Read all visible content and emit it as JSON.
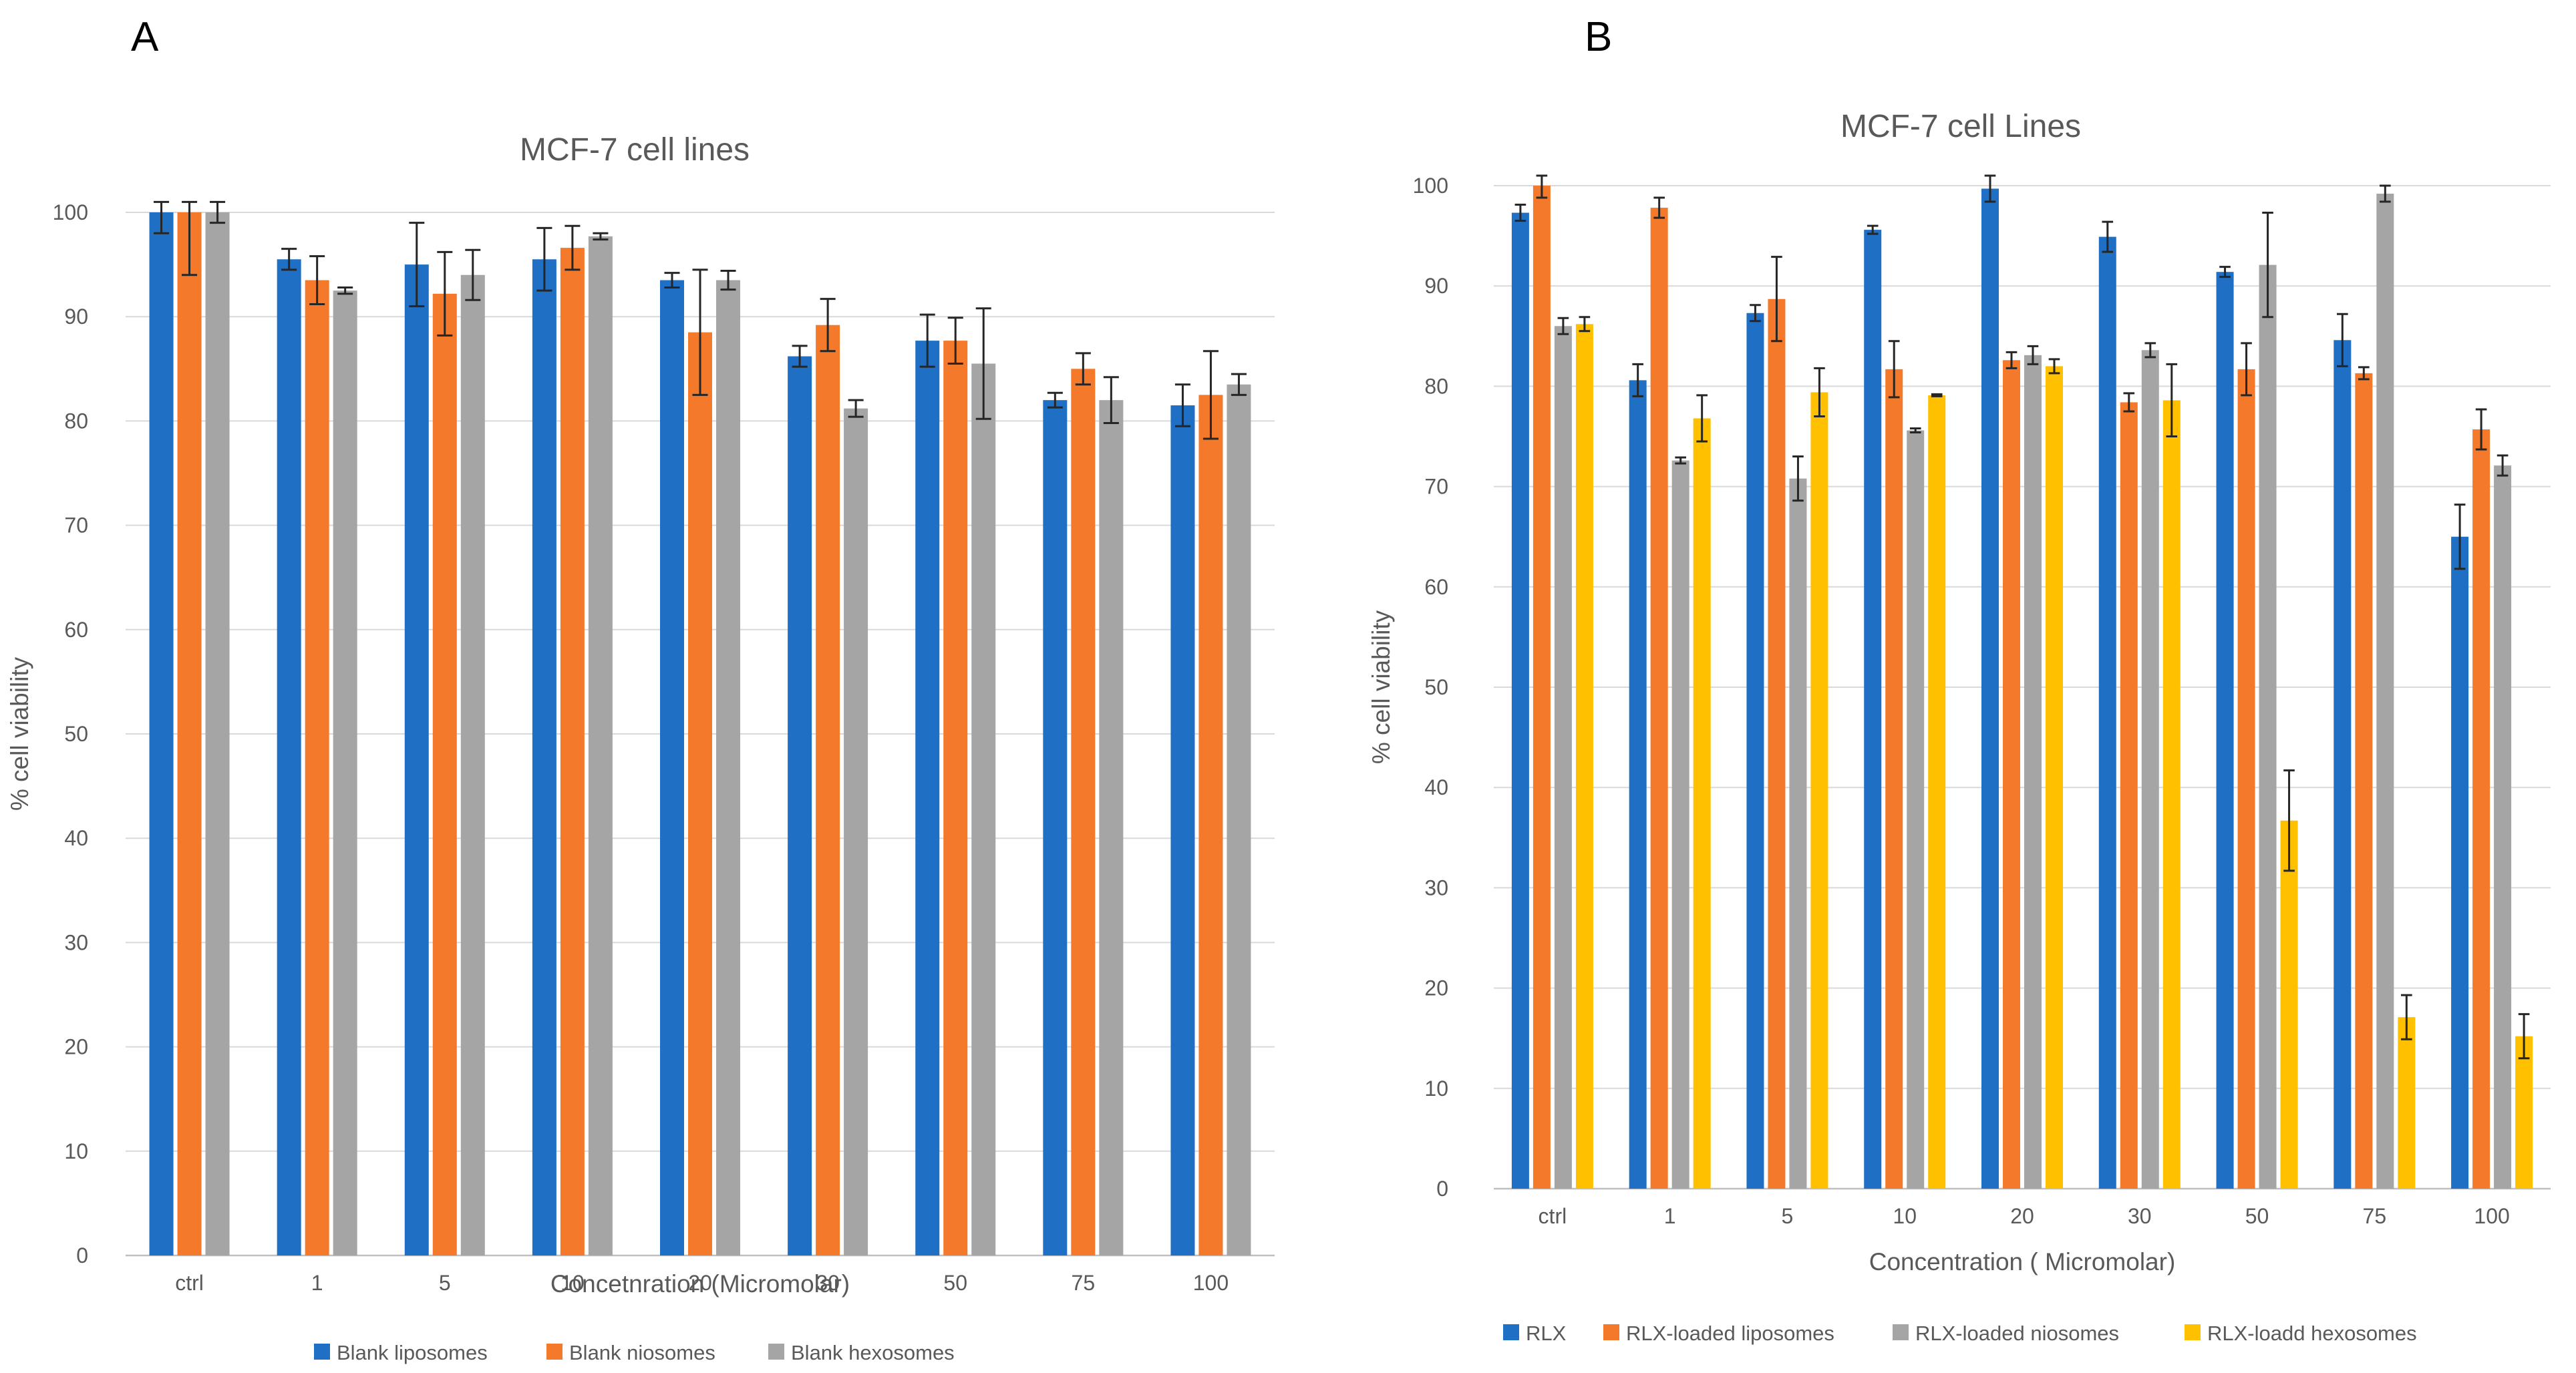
{
  "panels": {
    "a_letter": "A",
    "b_letter": "B"
  },
  "chart_data": [
    {
      "type": "bar",
      "title": "MCF-7 cell lines",
      "xlabel": "Concetnration (Micromolar)",
      "ylabel": "% cell viability",
      "ylim": [
        0,
        100
      ],
      "yticks": [
        0,
        10,
        20,
        30,
        40,
        50,
        60,
        70,
        80,
        90,
        100
      ],
      "grid": true,
      "legend_position": "bottom",
      "categories": [
        "ctrl",
        "1",
        "5",
        "10",
        "20",
        "30",
        "50",
        "75",
        "100"
      ],
      "series": [
        {
          "name": "Blank liposomes",
          "color": "#1f6fc5",
          "values": [
            100,
            95.5,
            95,
            95.5,
            93.5,
            86.2,
            87.7,
            82,
            81.5
          ],
          "errors": [
            2,
            1,
            4,
            3,
            0.7,
            1,
            2.5,
            0.7,
            2
          ]
        },
        {
          "name": "Blank niosomes",
          "color": "#f4792a",
          "values": [
            100,
            93.5,
            92.2,
            96.6,
            88.5,
            89.2,
            87.7,
            85,
            82.5
          ],
          "errors": [
            6,
            2.3,
            4,
            2.1,
            6,
            2.5,
            2.2,
            1.5,
            4.2
          ]
        },
        {
          "name": "Blank hexosomes",
          "color": "#a5a5a5",
          "values": [
            100,
            92.5,
            94,
            97.7,
            93.5,
            81.2,
            85.5,
            82,
            83.5
          ],
          "errors": [
            1,
            0.3,
            2.4,
            0.3,
            0.9,
            0.8,
            5.3,
            2.2,
            1
          ]
        }
      ]
    },
    {
      "type": "bar",
      "title": "MCF-7 cell Lines",
      "xlabel": "Concentration ( Micromolar)",
      "ylabel": "% cell viability",
      "ylim": [
        0,
        100
      ],
      "yticks": [
        0,
        10,
        20,
        30,
        40,
        50,
        60,
        70,
        80,
        90,
        100
      ],
      "grid": true,
      "legend_position": "bottom",
      "categories": [
        "ctrl",
        "1",
        "5",
        "10",
        "20",
        "30",
        "50",
        "75",
        "100"
      ],
      "series": [
        {
          "name": "RLX",
          "color": "#1f6fc5",
          "values": [
            97.3,
            80.6,
            87.3,
            95.6,
            99.7,
            94.9,
            91.4,
            84.6,
            65
          ],
          "errors": [
            0.8,
            1.6,
            0.8,
            0.4,
            1.3,
            1.5,
            0.5,
            2.6,
            3.2
          ]
        },
        {
          "name": "RLX-loaded liposomes",
          "color": "#f4792a",
          "values": [
            100,
            97.8,
            88.7,
            81.7,
            82.6,
            78.4,
            81.7,
            81.3,
            75.7
          ],
          "errors": [
            1.2,
            1,
            4.2,
            2.8,
            0.8,
            0.9,
            2.6,
            0.6,
            2
          ]
        },
        {
          "name": "RLX-loaded niosomes",
          "color": "#a5a5a5",
          "values": [
            86,
            72.6,
            70.8,
            75.6,
            83.1,
            83.6,
            92.1,
            99.2,
            72.1
          ],
          "errors": [
            0.8,
            0.3,
            2.2,
            0.2,
            0.9,
            0.7,
            5.2,
            0.8,
            1
          ]
        },
        {
          "name": "RLX-loadd hexosomes",
          "color": "#ffc000",
          "values": [
            86.2,
            76.8,
            79.4,
            79.1,
            82,
            78.6,
            36.7,
            17.1,
            15.2
          ],
          "errors": [
            0.7,
            2.3,
            2.4,
            0.1,
            0.7,
            3.6,
            5,
            2.2,
            2.2
          ]
        }
      ]
    }
  ]
}
